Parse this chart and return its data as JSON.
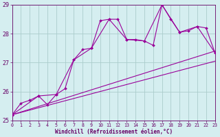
{
  "background_color": "#d5eef0",
  "grid_color": "#aacccc",
  "line_color": "#990099",
  "xlabel": "Windchill (Refroidissement éolien,°C)",
  "xlabel_color": "#660066",
  "tick_color": "#660066",
  "ylim": [
    25,
    29
  ],
  "xlim": [
    0,
    23
  ],
  "yticks": [
    25,
    26,
    27,
    28,
    29
  ],
  "xticks": [
    0,
    1,
    2,
    3,
    4,
    5,
    6,
    7,
    8,
    9,
    10,
    11,
    12,
    13,
    14,
    15,
    16,
    17,
    18,
    19,
    20,
    21,
    22,
    23
  ],
  "series1_x": [
    0,
    1,
    2,
    3,
    4,
    5,
    6,
    7,
    8,
    9,
    10,
    11,
    12,
    13,
    14,
    15,
    16,
    17,
    18,
    19,
    20,
    21,
    22,
    23
  ],
  "series1_y": [
    25.2,
    25.6,
    25.7,
    25.85,
    25.55,
    25.9,
    26.1,
    27.1,
    27.45,
    27.5,
    28.45,
    28.5,
    28.5,
    27.8,
    27.8,
    27.75,
    27.6,
    29.0,
    28.5,
    28.05,
    28.1,
    28.25,
    28.2,
    27.35
  ],
  "series2_x": [
    0,
    3,
    5,
    7,
    9,
    11,
    13,
    15,
    17,
    19,
    21,
    23
  ],
  "series2_y": [
    25.2,
    25.85,
    25.9,
    27.1,
    27.5,
    28.5,
    27.8,
    27.75,
    29.0,
    28.05,
    28.25,
    27.35
  ],
  "line3_x0": 0,
  "line3_y0": 25.2,
  "line3_x1": 23,
  "line3_y1": 27.4,
  "line4_x0": 0,
  "line4_y0": 25.2,
  "line4_x1": 23,
  "line4_y1": 27.05
}
